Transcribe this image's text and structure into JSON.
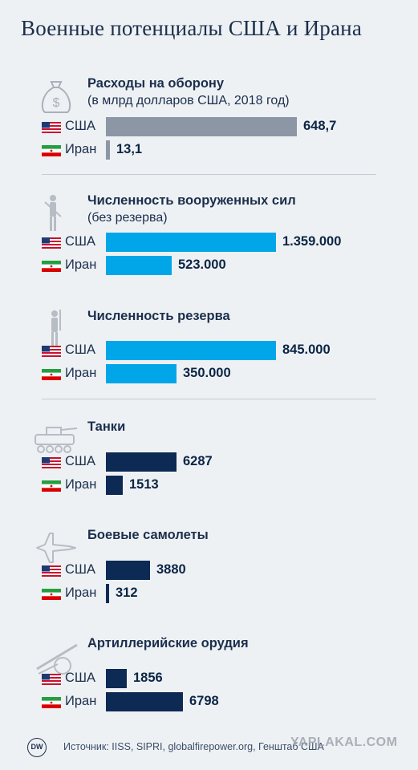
{
  "title": "Военные потенциалы США и Ирана",
  "countries": {
    "us": "США",
    "iran": "Иран"
  },
  "colors": {
    "gray": "#8c96a5",
    "blue": "#00a6e8",
    "navy": "#0d2a55"
  },
  "chart_data": [
    {
      "type": "bar",
      "title": "Расходы на оборону",
      "subtitle": "(в млрд долларов США, 2018 год)",
      "icon": "money-bag-icon",
      "categories": [
        "США",
        "Иран"
      ],
      "values": [
        648.7,
        13.1
      ],
      "labels": [
        "648,7",
        "13,1"
      ],
      "color": "#8c96a5"
    },
    {
      "type": "bar",
      "title": "Численность вооруженных сил",
      "subtitle": "(без резерва)",
      "icon": "soldier-icon",
      "categories": [
        "США",
        "Иран"
      ],
      "values": [
        1359000,
        523000
      ],
      "labels": [
        "1.359.000",
        "523.000"
      ],
      "color": "#00a6e8"
    },
    {
      "type": "bar",
      "title": "Численность резерва",
      "subtitle": "",
      "icon": "reserve-soldier-icon",
      "categories": [
        "США",
        "Иран"
      ],
      "values": [
        845000,
        350000
      ],
      "labels": [
        "845.000",
        "350.000"
      ],
      "color": "#00a6e8"
    },
    {
      "type": "bar",
      "title": "Танки",
      "subtitle": "",
      "icon": "tank-icon",
      "categories": [
        "США",
        "Иран"
      ],
      "values": [
        6287,
        1513
      ],
      "labels": [
        "6287",
        "1513"
      ],
      "color": "#0d2a55"
    },
    {
      "type": "bar",
      "title": "Боевые самолеты",
      "subtitle": "",
      "icon": "fighter-jet-icon",
      "categories": [
        "США",
        "Иран"
      ],
      "values": [
        3880,
        312
      ],
      "labels": [
        "3880",
        "312"
      ],
      "color": "#0d2a55"
    },
    {
      "type": "bar",
      "title": "Артиллерийские орудия",
      "subtitle": "",
      "icon": "artillery-icon",
      "categories": [
        "США",
        "Иран"
      ],
      "values": [
        1856,
        6798
      ],
      "labels": [
        "1856",
        "6798"
      ],
      "color": "#0d2a55"
    }
  ],
  "footer": {
    "logo": "DW",
    "source": "Источник: IISS, SIPRI, globalfirepower.org, Генштаб США",
    "watermark": "YAPLAKAL.COM"
  }
}
